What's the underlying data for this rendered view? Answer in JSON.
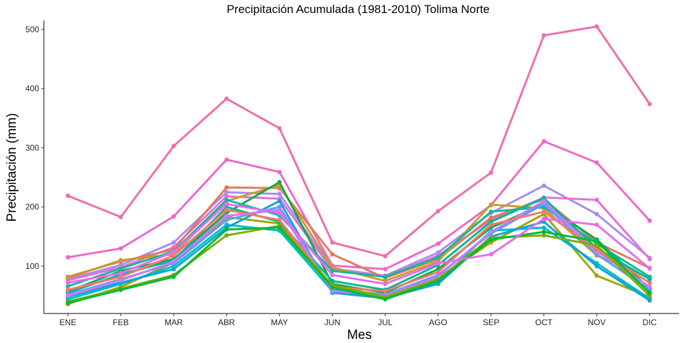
{
  "chart_data": {
    "type": "line",
    "title": "Precipitación Acumulada (1981-2010)  Tolima Norte",
    "xlabel": "Mes",
    "ylabel": "Precipitación  (mm)",
    "categories": [
      "ENE",
      "FEB",
      "MAR",
      "ABR",
      "MAY",
      "JUN",
      "JUL",
      "AGO",
      "SEP",
      "OCT",
      "NOV",
      "DIC"
    ],
    "ylim": [
      20,
      515
    ],
    "yticks": [
      100,
      200,
      300,
      400,
      500
    ],
    "grid": false,
    "legend": "none",
    "series": [
      {
        "color": "#f06ea9",
        "values": [
          219,
          183,
          303,
          383,
          333,
          140,
          117,
          193,
          258,
          490,
          505,
          374
        ]
      },
      {
        "color": "#ef67c8",
        "values": [
          115,
          130,
          184,
          280,
          259,
          101,
          95,
          138,
          203,
          311,
          275,
          177
        ]
      },
      {
        "color": "#a88cf0",
        "values": [
          78,
          102,
          140,
          225,
          222,
          96,
          84,
          123,
          190,
          236,
          188,
          114
        ]
      },
      {
        "color": "#e56fd8",
        "values": [
          76,
          98,
          132,
          218,
          214,
          94,
          82,
          118,
          178,
          216,
          212,
          112
        ]
      },
      {
        "color": "#e07a5f",
        "values": [
          82,
          108,
          128,
          233,
          232,
          120,
          80,
          112,
          182,
          213,
          140,
          97
        ]
      },
      {
        "color": "#c99b2a",
        "values": [
          80,
          110,
          120,
          210,
          237,
          98,
          75,
          108,
          204,
          198,
          118,
          80
        ]
      },
      {
        "color": "#a3a500",
        "values": [
          36,
          65,
          106,
          183,
          172,
          62,
          52,
          80,
          140,
          188,
          84,
          48
        ]
      },
      {
        "color": "#18a84b",
        "values": [
          57,
          92,
          112,
          190,
          242,
          70,
          55,
          95,
          165,
          205,
          145,
          62
        ]
      },
      {
        "color": "#00b891",
        "values": [
          55,
          86,
          110,
          200,
          175,
          75,
          60,
          102,
          175,
          215,
          130,
          78
        ]
      },
      {
        "color": "#15b79d",
        "values": [
          66,
          96,
          125,
          212,
          186,
          92,
          82,
          115,
          192,
          200,
          138,
          82
        ]
      },
      {
        "color": "#00bfc4",
        "values": [
          44,
          70,
          100,
          170,
          160,
          58,
          48,
          72,
          160,
          165,
          105,
          45
        ]
      },
      {
        "color": "#10a5d8",
        "values": [
          48,
          72,
          95,
          165,
          210,
          55,
          46,
          70,
          150,
          175,
          100,
          42
        ]
      },
      {
        "color": "#619cff",
        "values": [
          52,
          78,
          105,
          178,
          200,
          60,
          52,
          85,
          155,
          205,
          120,
          60
        ]
      },
      {
        "color": "#c77cff",
        "values": [
          50,
          76,
          108,
          185,
          195,
          58,
          50,
          82,
          158,
          210,
          125,
          65
        ]
      },
      {
        "color": "#f8766d",
        "values": [
          60,
          82,
          118,
          195,
          178,
          65,
          58,
          90,
          170,
          192,
          128,
          72
        ]
      },
      {
        "color": "#7cae00",
        "values": [
          40,
          62,
          85,
          152,
          168,
          68,
          48,
          78,
          148,
          152,
          135,
          50
        ]
      },
      {
        "color": "#00ba38",
        "values": [
          38,
          60,
          82,
          162,
          165,
          64,
          44,
          75,
          145,
          158,
          142,
          55
        ]
      },
      {
        "color": "#e76bf3",
        "values": [
          72,
          88,
          124,
          205,
          190,
          85,
          70,
          105,
          120,
          180,
          170,
          96
        ]
      }
    ]
  }
}
